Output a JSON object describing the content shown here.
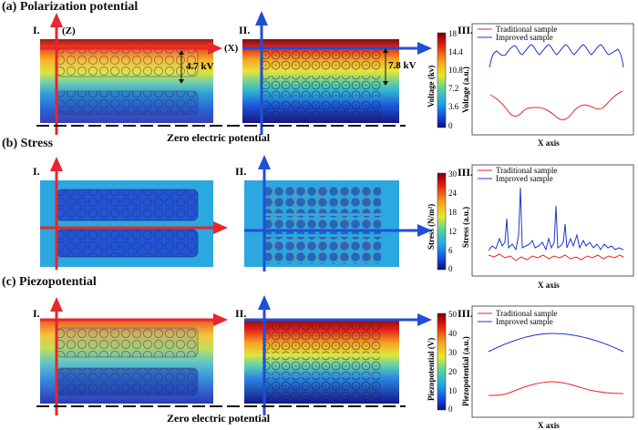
{
  "panels": {
    "a": {
      "title": "(a) Polarization potential",
      "label_I": "I.",
      "label_II": "II.",
      "label_III": "III.",
      "axis_z": "(Z)",
      "axis_x": "(X)",
      "dim_I": "4.7 kV",
      "dim_II": "7.8 kV",
      "ground": "Zero electric potential",
      "colorbar": {
        "title": "Voltage (kv)",
        "ticks": [
          "18",
          "14.4",
          "10.8",
          "7.2",
          "3.6",
          "0"
        ]
      },
      "chart": {
        "ylabel": "Voltage (a.u.)",
        "xlabel": "X axis",
        "legend": [
          "Traditional sample",
          "Improved sample"
        ]
      }
    },
    "b": {
      "title": "(b) Stress",
      "label_I": "I.",
      "label_II": "II.",
      "label_III": "III.",
      "colorbar": {
        "title": "Stress (N/m²)",
        "ticks": [
          "30",
          "24",
          "18",
          "12",
          "6",
          "0"
        ]
      },
      "chart": {
        "ylabel": "Stress (a.u.)",
        "xlabel": "X axis",
        "legend": [
          "Traditional sample",
          "Improved sample"
        ]
      }
    },
    "c": {
      "title": "(c) Piezopotential",
      "label_I": "I.",
      "label_II": "II.",
      "label_III": "III.",
      "ground": "Zero electric potential",
      "colorbar": {
        "title": "Piezopotential (V)",
        "ticks": [
          "50",
          "40",
          "30",
          "20",
          "10",
          "0"
        ]
      },
      "chart": {
        "ylabel": "Piezopotential (a.u.)",
        "xlabel": "X axis",
        "legend": [
          "Traditional sample",
          "Improved sample"
        ]
      }
    }
  },
  "colors": {
    "traditional": "#e8262b",
    "improved": "#1f35c9",
    "arrow_red": "#e8262b",
    "arrow_blue": "#1f4fd8"
  }
}
